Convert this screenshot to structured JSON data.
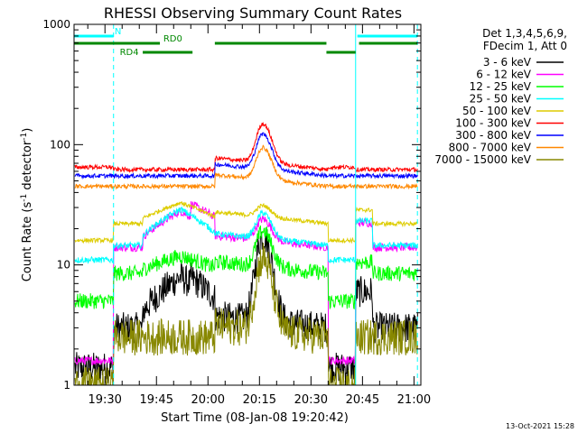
{
  "chart_data": {
    "type": "line",
    "title": "RHESSI Observing Summary Count Rates",
    "xlabel": "Start Time (08-Jan-08 19:20:42)",
    "ylabel_main": "Count Rate (s",
    "ylabel_sup1": "-1",
    "ylabel_mid": " detector",
    "ylabel_sup2": "-1",
    "ylabel_end": ")",
    "yscale": "log",
    "ylim": [
      1,
      1000
    ],
    "xlim_min": [
      1161,
      1262
    ],
    "yticks": [
      {
        "value": 1,
        "label": "1"
      },
      {
        "value": 10,
        "label": "10"
      },
      {
        "value": 100,
        "label": "100"
      },
      {
        "value": 1000,
        "label": "1000"
      }
    ],
    "xticks": [
      {
        "value": 1170,
        "label": "19:30"
      },
      {
        "value": 1185,
        "label": "19:45"
      },
      {
        "value": 1200,
        "label": "20:00"
      },
      {
        "value": 1215,
        "label": "20:15"
      },
      {
        "value": 1230,
        "label": "20:30"
      },
      {
        "value": 1245,
        "label": "20:45"
      },
      {
        "value": 1260,
        "label": "21:00"
      }
    ],
    "legend_header": [
      "Det 1,3,4,5,6,9,",
      "FDecim 1, Att 0"
    ],
    "series": [
      {
        "name": "3 - 6 keV",
        "color": "#000000",
        "baseline": 3.0,
        "night": 1.4,
        "excess": 3.3,
        "excess_pre": 0.6,
        "peak": 17,
        "noise": 0.3,
        "tail": "#000000"
      },
      {
        "name": "6 - 12 keV",
        "color": "#ff00ff",
        "baseline": 14.0,
        "night": 1.6,
        "excess": 2.0,
        "excess_pre": 1.0,
        "peak": 22,
        "noise": 0.08
      },
      {
        "name": "12 - 25 keV",
        "color": "#00ff00",
        "baseline": 8.5,
        "night": 5.0,
        "excess": 0.8,
        "excess_pre": 0.0,
        "peak": 18,
        "noise": 0.15
      },
      {
        "name": "25 - 50 keV",
        "color": "#00ffff",
        "baseline": 14.5,
        "night": 11.0,
        "excess": 2.0,
        "excess_pre": 0.0,
        "peak": 25,
        "noise": 0.06
      },
      {
        "name": "50 - 100 keV",
        "color": "#ddcc00",
        "baseline": 22.0,
        "night": 16.0,
        "excess": 1.0,
        "excess_pre": 0.0,
        "peak": 28,
        "noise": 0.04
      },
      {
        "name": "100 - 300 keV",
        "color": "#ff0000",
        "baseline": 62.0,
        "night": 65.0,
        "excess": 0.0,
        "excess_pre": 0.0,
        "peak": 140,
        "noise": 0.04
      },
      {
        "name": "300 - 800 keV",
        "color": "#0000ff",
        "baseline": 55.0,
        "night": 55.0,
        "excess": 0.0,
        "excess_pre": 0.0,
        "peak": 115,
        "noise": 0.04
      },
      {
        "name": "800 - 7000 keV",
        "color": "#ff8800",
        "baseline": 45.0,
        "night": 45.0,
        "excess": 0.0,
        "excess_pre": 0.0,
        "peak": 88,
        "noise": 0.04
      },
      {
        "name": "7000 - 15000 keV",
        "color": "#888800",
        "baseline": 2.5,
        "night": 1.0,
        "excess": 0.0,
        "excess_pre": 0.0,
        "peak": 11,
        "noise": 0.35
      }
    ],
    "night_intervals": [
      [
        1161,
        1172.5
      ],
      [
        1235,
        1243
      ]
    ],
    "saa_intervals": [
      [
        1172.5,
        1181
      ],
      [
        1243,
        1248
      ]
    ],
    "flare_peak_min": 1216,
    "annotations": [
      {
        "label": "N",
        "color": "#00ffff",
        "x0": 1161,
        "x1": 1172.5,
        "row": 0,
        "label_at": 1172.8
      },
      {
        "label": "N",
        "color": "#00ffff",
        "x0": 1243.5,
        "x1": 1261,
        "row": 0,
        "label_at": null
      },
      {
        "label": "RD0",
        "color": "#008800",
        "x0": 1161,
        "x1": 1186,
        "row": 1,
        "label_at": 1187
      },
      {
        "label": "RD0",
        "color": "#008800",
        "x0": 1202,
        "x1": 1234.5,
        "row": 1,
        "label_at": null
      },
      {
        "label": "RD0",
        "color": "#008800",
        "x0": 1244,
        "x1": 1261,
        "row": 1,
        "label_at": null
      },
      {
        "label": "RD4",
        "color": "#008800",
        "x0": 1181,
        "x1": 1195.5,
        "row": 2,
        "label_at": 1174.3
      },
      {
        "label": "RD4",
        "color": "#008800",
        "x0": 1234.5,
        "x1": 1243,
        "row": 2,
        "label_at": null
      }
    ],
    "vertical_markers": [
      {
        "x": 1172.5,
        "color": "#00ffff",
        "dash": true
      },
      {
        "x": 1243,
        "color": "#00ffff",
        "dash": false
      },
      {
        "x": 1261,
        "color": "#00ffff",
        "dash": true
      }
    ],
    "footer_date": "13-Oct-2021 15:28",
    "grid": false
  }
}
